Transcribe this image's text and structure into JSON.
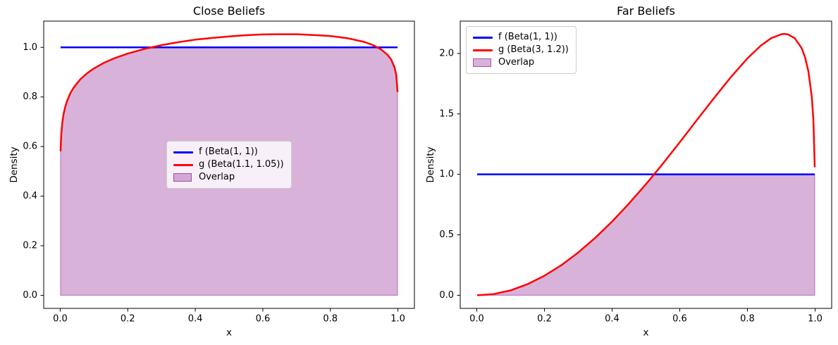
{
  "figure": {
    "background": "#ffffff",
    "spine_color": "#000000",
    "tick_color": "#000000",
    "text_color": "#000000",
    "legend_face": "rgba(255,255,255,0.8)",
    "legend_edge": "#cccccc",
    "line_width": 2.5
  },
  "chart_data": [
    {
      "type": "area",
      "title": "Close Beliefs",
      "xlabel": "x",
      "ylabel": "Density",
      "xlim": [
        -0.0489,
        1.0489
      ],
      "ylim": [
        -0.0527,
        1.1058
      ],
      "grid": false,
      "xticks": {
        "values": [
          0.0,
          0.2,
          0.4,
          0.6,
          0.8,
          1.0
        ],
        "labels": [
          "0.0",
          "0.2",
          "0.4",
          "0.6",
          "0.8",
          "1.0"
        ]
      },
      "yticks": {
        "values": [
          0.0,
          0.2,
          0.4,
          0.6,
          0.8,
          1.0
        ],
        "labels": [
          "0.0",
          "0.2",
          "0.4",
          "0.6",
          "0.8",
          "1.0"
        ]
      },
      "legend": {
        "loc": "center"
      },
      "series": [
        {
          "key": "f",
          "name": "f (Beta(1, 1))",
          "type": "line",
          "color": "#0000ff",
          "x": [
            0.001,
            0.999
          ],
          "y": [
            1.0,
            1.0
          ]
        },
        {
          "key": "g",
          "name": "g (Beta(1.1, 1.05))",
          "type": "line",
          "color": "#ff0000",
          "x": [
            0.001,
            0.003,
            0.006,
            0.01,
            0.015,
            0.02,
            0.03,
            0.04,
            0.06,
            0.08,
            0.1,
            0.13,
            0.16,
            0.2,
            0.25,
            0.3,
            0.35,
            0.4,
            0.45,
            0.5,
            0.55,
            0.6,
            0.65,
            0.7,
            0.75,
            0.8,
            0.85,
            0.9,
            0.93,
            0.95,
            0.97,
            0.98,
            0.99,
            0.995,
            0.999
          ],
          "y": [
            0.581,
            0.648,
            0.694,
            0.731,
            0.761,
            0.783,
            0.815,
            0.838,
            0.872,
            0.896,
            0.915,
            0.938,
            0.956,
            0.975,
            0.994,
            1.009,
            1.021,
            1.031,
            1.038,
            1.044,
            1.049,
            1.052,
            1.053,
            1.053,
            1.05,
            1.046,
            1.037,
            1.022,
            1.007,
            0.992,
            0.969,
            0.951,
            0.919,
            0.889,
            0.82
          ]
        },
        {
          "key": "overlap",
          "name": "Overlap",
          "type": "fill",
          "color": "#800080",
          "alpha": 0.3,
          "baseline": 0.0,
          "x": [
            0.001,
            0.003,
            0.006,
            0.01,
            0.015,
            0.02,
            0.03,
            0.04,
            0.06,
            0.08,
            0.1,
            0.13,
            0.16,
            0.2,
            0.25,
            0.3,
            0.35,
            0.4,
            0.45,
            0.5,
            0.55,
            0.6,
            0.65,
            0.7,
            0.75,
            0.8,
            0.85,
            0.9,
            0.93,
            0.95,
            0.97,
            0.98,
            0.99,
            0.995,
            0.999
          ],
          "y": [
            0.581,
            0.648,
            0.694,
            0.731,
            0.761,
            0.783,
            0.815,
            0.838,
            0.872,
            0.896,
            0.915,
            0.938,
            0.956,
            0.975,
            0.994,
            1.0,
            1.0,
            1.0,
            1.0,
            1.0,
            1.0,
            1.0,
            1.0,
            1.0,
            1.0,
            1.0,
            1.0,
            1.0,
            1.0,
            0.992,
            0.969,
            0.951,
            0.919,
            0.889,
            0.82
          ]
        }
      ]
    },
    {
      "type": "area",
      "title": "Far Beliefs",
      "xlabel": "x",
      "ylabel": "Density",
      "xlim": [
        -0.0489,
        1.0489
      ],
      "ylim": [
        -0.1083,
        2.2672
      ],
      "grid": false,
      "xticks": {
        "values": [
          0.0,
          0.2,
          0.4,
          0.6,
          0.8,
          1.0
        ],
        "labels": [
          "0.0",
          "0.2",
          "0.4",
          "0.6",
          "0.8",
          "1.0"
        ]
      },
      "yticks": {
        "values": [
          0.0,
          0.5,
          1.0,
          1.5,
          2.0
        ],
        "labels": [
          "0.0",
          "0.5",
          "1.0",
          "1.5",
          "2.0"
        ]
      },
      "legend": {
        "loc": "upper left"
      },
      "series": [
        {
          "key": "f",
          "name": "f (Beta(1, 1))",
          "type": "line",
          "color": "#0000ff",
          "x": [
            0.001,
            0.999
          ],
          "y": [
            1.0,
            1.0
          ]
        },
        {
          "key": "g",
          "name": "g (Beta(3, 1.2))",
          "type": "line",
          "color": "#ff0000",
          "x": [
            0.001,
            0.05,
            0.1,
            0.15,
            0.2,
            0.25,
            0.3,
            0.35,
            0.4,
            0.45,
            0.5,
            0.52,
            0.53,
            0.55,
            0.6,
            0.65,
            0.7,
            0.75,
            0.8,
            0.84,
            0.87,
            0.9,
            0.91,
            0.92,
            0.94,
            0.96,
            0.97,
            0.98,
            0.99,
            0.995,
            0.999
          ],
          "y": [
            0.0,
            0.01,
            0.041,
            0.092,
            0.162,
            0.249,
            0.354,
            0.475,
            0.61,
            0.759,
            0.919,
            0.986,
            1.02,
            1.089,
            1.266,
            1.447,
            1.627,
            1.801,
            1.959,
            2.066,
            2.126,
            2.159,
            2.161,
            2.157,
            2.126,
            2.045,
            1.971,
            1.855,
            1.648,
            1.449,
            1.059
          ]
        },
        {
          "key": "overlap",
          "name": "Overlap",
          "type": "fill",
          "color": "#800080",
          "alpha": 0.3,
          "baseline": 0.0,
          "x": [
            0.001,
            0.05,
            0.1,
            0.15,
            0.2,
            0.25,
            0.3,
            0.35,
            0.4,
            0.45,
            0.5,
            0.52,
            0.53,
            0.55,
            0.6,
            0.65,
            0.7,
            0.75,
            0.8,
            0.84,
            0.87,
            0.9,
            0.91,
            0.92,
            0.94,
            0.96,
            0.97,
            0.98,
            0.99,
            0.995,
            0.999
          ],
          "y": [
            0.0,
            0.01,
            0.041,
            0.092,
            0.162,
            0.249,
            0.354,
            0.475,
            0.61,
            0.759,
            0.919,
            0.986,
            1.0,
            1.0,
            1.0,
            1.0,
            1.0,
            1.0,
            1.0,
            1.0,
            1.0,
            1.0,
            1.0,
            1.0,
            1.0,
            1.0,
            1.0,
            1.0,
            1.0,
            1.0,
            1.0
          ]
        }
      ]
    }
  ]
}
